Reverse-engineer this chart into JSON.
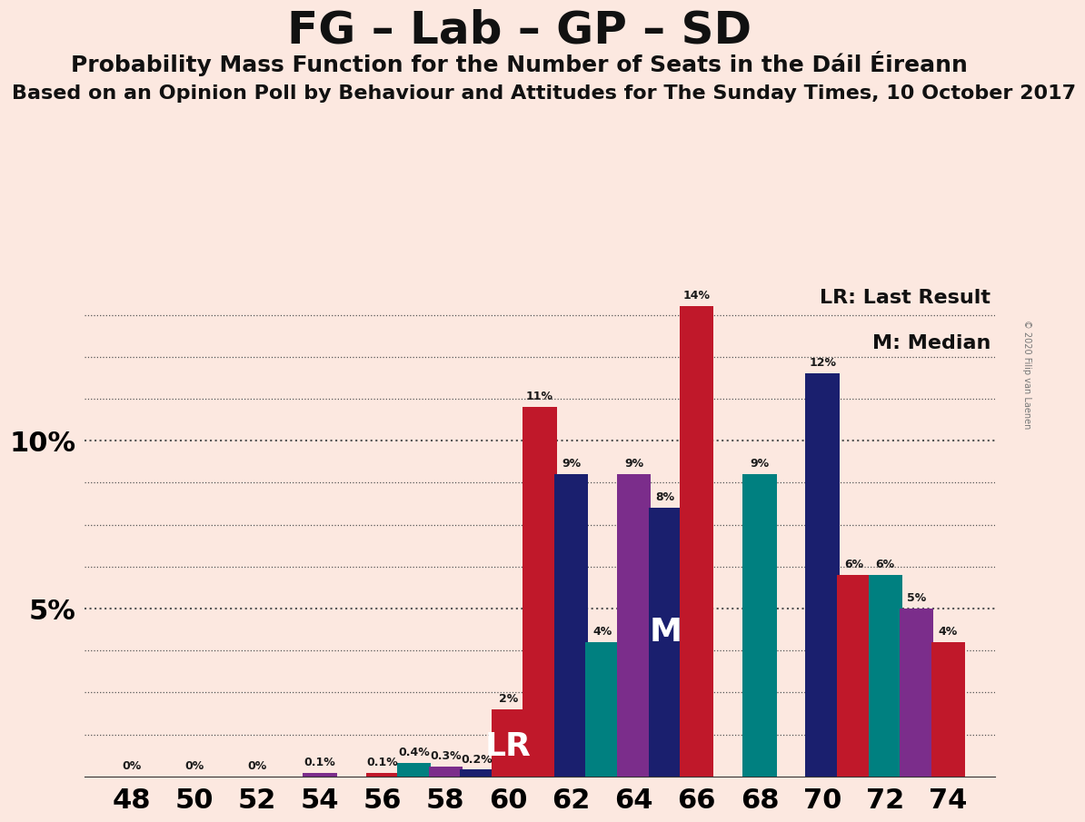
{
  "title": "FG – Lab – GP – SD",
  "subtitle": "Probability Mass Function for the Number of Seats in the Dáil Éireann",
  "subtitle2": "Based on an Opinion Poll by Behaviour and Attitudes for The Sunday Times, 10 October 2017",
  "copyright": "© 2020 Filip van Laenen",
  "background_color": "#fce8e0",
  "LR_label": "LR",
  "M_label": "M",
  "LR_seat": 60,
  "M_seat": 64,
  "seats": [
    48,
    50,
    52,
    54,
    56,
    57,
    58,
    59,
    60,
    61,
    62,
    63,
    64,
    65,
    66,
    68,
    70,
    71,
    72,
    73,
    74
  ],
  "values": [
    0.0,
    0.0,
    0.0,
    0.1,
    0.1,
    0.4,
    0.3,
    0.2,
    2.0,
    11.0,
    9.0,
    4.0,
    9.0,
    8.0,
    14.0,
    9.0,
    12.0,
    6.0,
    6.0,
    5.0,
    4.0
  ],
  "colors": [
    "#1a1f6e",
    "#1a1f6e",
    "#1a1f6e",
    "#7b2d8b",
    "#c0182a",
    "#008080",
    "#7b2d8b",
    "#1a1f6e",
    "#c0182a",
    "#c0182a",
    "#1a1f6e",
    "#008080",
    "#7b2d8b",
    "#1a1f6e",
    "#c0182a",
    "#008080",
    "#1a1f6e",
    "#c0182a",
    "#008080",
    "#7b2d8b",
    "#c0182a"
  ],
  "ylim": [
    0,
    15
  ],
  "bar_width": 0.7,
  "xlabel_fontsize": 22,
  "ylabel_fontsize": 22,
  "title_fontsize": 36,
  "subtitle_fontsize": 18,
  "subtitle2_fontsize": 16
}
